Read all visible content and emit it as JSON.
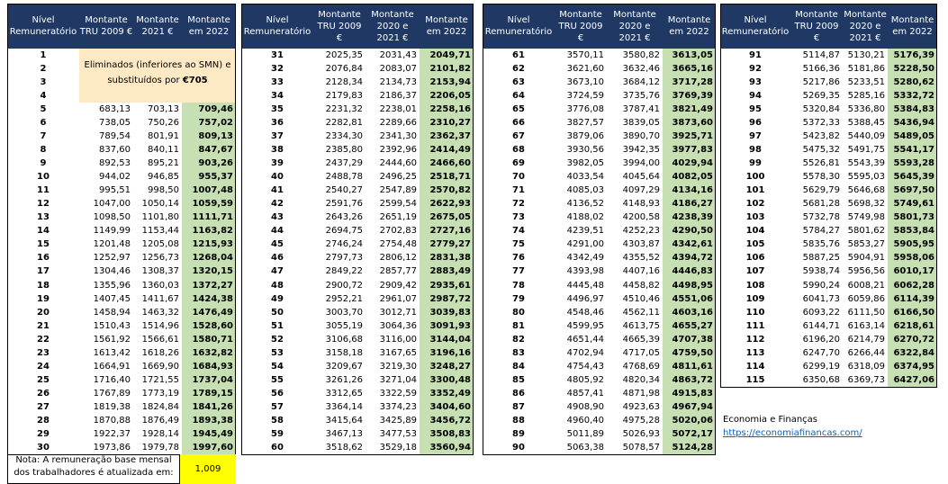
{
  "tables": [
    {
      "header": [
        "Nível Remuneratório",
        "Montante TRU 2009 €",
        "Montante 2021 €",
        "Montante em 2022"
      ],
      "merged": {
        "text": "Eliminados (inferiores ao SMN) e substituídos por",
        "amount": "€705"
      },
      "rows": [
        [
          "1"
        ],
        [
          "2"
        ],
        [
          "3"
        ],
        [
          "4"
        ],
        [
          "5",
          "683,13",
          "703,13",
          "709,46"
        ],
        [
          "6",
          "738,05",
          "750,26",
          "757,02"
        ],
        [
          "7",
          "789,54",
          "801,91",
          "809,13"
        ],
        [
          "8",
          "837,60",
          "840,11",
          "847,67"
        ],
        [
          "9",
          "892,53",
          "895,21",
          "903,26"
        ],
        [
          "10",
          "944,02",
          "946,85",
          "955,37"
        ],
        [
          "11",
          "995,51",
          "998,50",
          "1007,48"
        ],
        [
          "12",
          "1047,00",
          "1050,14",
          "1059,59"
        ],
        [
          "13",
          "1098,50",
          "1101,80",
          "1111,71"
        ],
        [
          "14",
          "1149,99",
          "1153,44",
          "1163,82"
        ],
        [
          "15",
          "1201,48",
          "1205,08",
          "1215,93"
        ],
        [
          "16",
          "1252,97",
          "1256,73",
          "1268,04"
        ],
        [
          "17",
          "1304,46",
          "1308,37",
          "1320,15"
        ],
        [
          "18",
          "1355,96",
          "1360,03",
          "1372,27"
        ],
        [
          "19",
          "1407,45",
          "1411,67",
          "1424,38"
        ],
        [
          "20",
          "1458,94",
          "1463,32",
          "1476,49"
        ],
        [
          "21",
          "1510,43",
          "1514,96",
          "1528,60"
        ],
        [
          "22",
          "1561,92",
          "1566,61",
          "1580,71"
        ],
        [
          "23",
          "1613,42",
          "1618,26",
          "1632,82"
        ],
        [
          "24",
          "1664,91",
          "1669,90",
          "1684,93"
        ],
        [
          "25",
          "1716,40",
          "1721,55",
          "1737,04"
        ],
        [
          "26",
          "1767,89",
          "1773,19",
          "1789,15"
        ],
        [
          "27",
          "1819,38",
          "1824,84",
          "1841,26"
        ],
        [
          "28",
          "1870,88",
          "1876,49",
          "1893,38"
        ],
        [
          "29",
          "1922,37",
          "1928,14",
          "1945,49"
        ],
        [
          "30",
          "1973,86",
          "1979,78",
          "1997,60"
        ]
      ]
    },
    {
      "header": [
        "Nível Remuneratório",
        "Montante TRU 2009 €",
        "Montante 2020 e 2021 €",
        "Montante em 2022"
      ],
      "rows": [
        [
          "31",
          "2025,35",
          "2031,43",
          "2049,71"
        ],
        [
          "32",
          "2076,84",
          "2083,07",
          "2101,82"
        ],
        [
          "33",
          "2128,34",
          "2134,73",
          "2153,94"
        ],
        [
          "34",
          "2179,83",
          "2186,37",
          "2206,05"
        ],
        [
          "35",
          "2231,32",
          "2238,01",
          "2258,16"
        ],
        [
          "36",
          "2282,81",
          "2289,66",
          "2310,27"
        ],
        [
          "37",
          "2334,30",
          "2341,30",
          "2362,37"
        ],
        [
          "38",
          "2385,80",
          "2392,96",
          "2414,49"
        ],
        [
          "39",
          "2437,29",
          "2444,60",
          "2466,60"
        ],
        [
          "40",
          "2488,78",
          "2496,25",
          "2518,71"
        ],
        [
          "41",
          "2540,27",
          "2547,89",
          "2570,82"
        ],
        [
          "42",
          "2591,76",
          "2599,54",
          "2622,93"
        ],
        [
          "43",
          "2643,26",
          "2651,19",
          "2675,05"
        ],
        [
          "44",
          "2694,75",
          "2702,83",
          "2727,16"
        ],
        [
          "45",
          "2746,24",
          "2754,48",
          "2779,27"
        ],
        [
          "46",
          "2797,73",
          "2806,12",
          "2831,38"
        ],
        [
          "47",
          "2849,22",
          "2857,77",
          "2883,49"
        ],
        [
          "48",
          "2900,72",
          "2909,42",
          "2935,61"
        ],
        [
          "49",
          "2952,21",
          "2961,07",
          "2987,72"
        ],
        [
          "50",
          "3003,70",
          "3012,71",
          "3039,83"
        ],
        [
          "51",
          "3055,19",
          "3064,36",
          "3091,93"
        ],
        [
          "52",
          "3106,68",
          "3116,00",
          "3144,04"
        ],
        [
          "53",
          "3158,18",
          "3167,65",
          "3196,16"
        ],
        [
          "54",
          "3209,67",
          "3219,30",
          "3248,27"
        ],
        [
          "55",
          "3261,26",
          "3271,04",
          "3300,48"
        ],
        [
          "56",
          "3312,65",
          "3322,59",
          "3352,49"
        ],
        [
          "57",
          "3364,14",
          "3374,23",
          "3404,60"
        ],
        [
          "58",
          "3415,64",
          "3425,89",
          "3456,72"
        ],
        [
          "59",
          "3467,13",
          "3477,53",
          "3508,83"
        ],
        [
          "60",
          "3518,62",
          "3529,18",
          "3560,94"
        ]
      ]
    },
    {
      "header": [
        "Nível Remuneratório",
        "Montante TRU 2009 €",
        "Montante 2020 e 2021 €",
        "Montante em 2022"
      ],
      "rows": [
        [
          "61",
          "3570,11",
          "3580,82",
          "3613,05"
        ],
        [
          "62",
          "3621,60",
          "3632,46",
          "3665,16"
        ],
        [
          "63",
          "3673,10",
          "3684,12",
          "3717,28"
        ],
        [
          "64",
          "3724,59",
          "3735,76",
          "3769,39"
        ],
        [
          "65",
          "3776,08",
          "3787,41",
          "3821,49"
        ],
        [
          "66",
          "3827,57",
          "3839,05",
          "3873,60"
        ],
        [
          "67",
          "3879,06",
          "3890,70",
          "3925,71"
        ],
        [
          "68",
          "3930,56",
          "3942,35",
          "3977,83"
        ],
        [
          "69",
          "3982,05",
          "3994,00",
          "4029,94"
        ],
        [
          "70",
          "4033,54",
          "4045,64",
          "4082,05"
        ],
        [
          "71",
          "4085,03",
          "4097,29",
          "4134,16"
        ],
        [
          "72",
          "4136,52",
          "4148,93",
          "4186,27"
        ],
        [
          "73",
          "4188,02",
          "4200,58",
          "4238,39"
        ],
        [
          "74",
          "4239,51",
          "4252,23",
          "4290,50"
        ],
        [
          "75",
          "4291,00",
          "4303,87",
          "4342,61"
        ],
        [
          "76",
          "4342,49",
          "4355,52",
          "4394,72"
        ],
        [
          "77",
          "4393,98",
          "4407,16",
          "4446,83"
        ],
        [
          "78",
          "4445,48",
          "4458,82",
          "4498,95"
        ],
        [
          "79",
          "4496,97",
          "4510,46",
          "4551,06"
        ],
        [
          "80",
          "4548,46",
          "4562,11",
          "4603,16"
        ],
        [
          "81",
          "4599,95",
          "4613,75",
          "4655,27"
        ],
        [
          "82",
          "4651,44",
          "4665,39",
          "4707,38"
        ],
        [
          "83",
          "4702,94",
          "4717,05",
          "4759,50"
        ],
        [
          "84",
          "4754,43",
          "4768,69",
          "4811,61"
        ],
        [
          "85",
          "4805,92",
          "4820,34",
          "4863,72"
        ],
        [
          "86",
          "4857,41",
          "4871,98",
          "4915,83"
        ],
        [
          "87",
          "4908,90",
          "4923,63",
          "4967,94"
        ],
        [
          "88",
          "4960,40",
          "4975,28",
          "5020,06"
        ],
        [
          "89",
          "5011,89",
          "5026,93",
          "5072,17"
        ],
        [
          "90",
          "5063,38",
          "5078,57",
          "5124,28"
        ]
      ]
    },
    {
      "header": [
        "Nível Remuneratório",
        "Montante TRU 2009 €",
        "Montante 2020 e 2021 €",
        "Montante em 2022"
      ],
      "rows": [
        [
          "91",
          "5114,87",
          "5130,21",
          "5176,39"
        ],
        [
          "92",
          "5166,36",
          "5181,86",
          "5228,50"
        ],
        [
          "93",
          "5217,86",
          "5233,51",
          "5280,62"
        ],
        [
          "94",
          "5269,35",
          "5285,16",
          "5332,72"
        ],
        [
          "95",
          "5320,84",
          "5336,80",
          "5384,83"
        ],
        [
          "96",
          "5372,33",
          "5388,45",
          "5436,94"
        ],
        [
          "97",
          "5423,82",
          "5440,09",
          "5489,05"
        ],
        [
          "98",
          "5475,32",
          "5491,75",
          "5541,17"
        ],
        [
          "99",
          "5526,81",
          "5543,39",
          "5593,28"
        ],
        [
          "100",
          "5578,30",
          "5595,03",
          "5645,39"
        ],
        [
          "101",
          "5629,79",
          "5646,68",
          "5697,50"
        ],
        [
          "102",
          "5681,28",
          "5698,32",
          "5749,61"
        ],
        [
          "103",
          "5732,78",
          "5749,98",
          "5801,73"
        ],
        [
          "104",
          "5784,27",
          "5801,62",
          "5853,84"
        ],
        [
          "105",
          "5835,76",
          "5853,27",
          "5905,95"
        ],
        [
          "106",
          "5887,25",
          "5904,91",
          "5958,06"
        ],
        [
          "107",
          "5938,74",
          "5956,56",
          "6010,17"
        ],
        [
          "108",
          "5990,24",
          "6008,21",
          "6062,28"
        ],
        [
          "109",
          "6041,73",
          "6059,86",
          "6114,39"
        ],
        [
          "110",
          "6093,22",
          "6111,50",
          "6166,50"
        ],
        [
          "111",
          "6144,71",
          "6163,14",
          "6218,61"
        ],
        [
          "112",
          "6196,20",
          "6214,79",
          "6270,72"
        ],
        [
          "113",
          "6247,70",
          "6266,44",
          "6322,84"
        ],
        [
          "114",
          "6299,19",
          "6318,09",
          "6374,95"
        ],
        [
          "115",
          "6350,68",
          "6369,73",
          "6427,06"
        ]
      ]
    }
  ],
  "note": {
    "text": "Nota: A remuneração base mensal dos trabalhadores é atualizada em:",
    "factor": "1,009"
  },
  "source": {
    "name": "Economia e Finanças",
    "url": "https://economiafinancas.com/"
  }
}
